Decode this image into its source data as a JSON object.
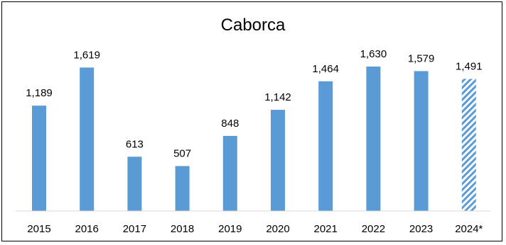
{
  "chart_data": {
    "type": "bar",
    "title": "Caborca",
    "xlabel": "",
    "ylabel": "",
    "categories": [
      "2015",
      "2016",
      "2017",
      "2018",
      "2019",
      "2020",
      "2021",
      "2022",
      "2023",
      "2024*"
    ],
    "values": [
      1189,
      1619,
      613,
      507,
      848,
      1142,
      1464,
      1630,
      1579,
      1491
    ],
    "value_labels": [
      "1,189",
      "1,619",
      "613",
      "507",
      "848",
      "1,142",
      "1,464",
      "1,630",
      "1,579",
      "1,491"
    ],
    "bar_style": [
      "solid",
      "solid",
      "solid",
      "solid",
      "solid",
      "solid",
      "solid",
      "solid",
      "solid",
      "hatched"
    ],
    "bar_color": "#5b9bd5",
    "axis_color": "#d9d9d9",
    "ylim": [
      0,
      1800
    ],
    "grid": false,
    "legend": "none"
  }
}
